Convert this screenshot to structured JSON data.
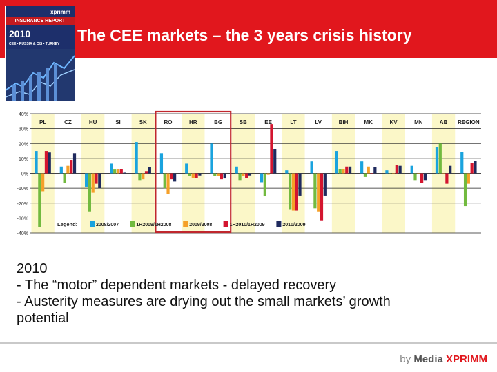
{
  "slide": {
    "title": "The CEE markets – the 3 years crisis history",
    "body_lines": [
      "2010",
      "- The “motor” dependent markets - delayed recovery",
      "- Austerity measures are drying out the small markets’ growth",
      "potential"
    ],
    "footer": {
      "by": "by",
      "media": "Media",
      "xprimm": "XPRIMM"
    }
  },
  "cover": {
    "brand": "xprimm",
    "title": "INSURANCE REPORT",
    "year": "2010",
    "subtitle": "CEE • RUSSIA & CIS • TURKEY"
  },
  "colors": {
    "header_red": "#e1171d",
    "highlight_band": "#fbf7c8",
    "highlight_box": "#c0272d",
    "series": [
      "#1aa3de",
      "#72ba3f",
      "#f5a028",
      "#d3152f",
      "#1f2a5e"
    ]
  },
  "chart_data": {
    "type": "bar",
    "categories": [
      "PL",
      "CZ",
      "HU",
      "SI",
      "SK",
      "RO",
      "HR",
      "BG",
      "SB",
      "EE",
      "LT",
      "LV",
      "BiH",
      "MK",
      "KV",
      "MN",
      "AB",
      "REGION"
    ],
    "series": [
      {
        "name": "2008/2007",
        "values": [
          15,
          4.5,
          -9,
          6.5,
          21,
          13.5,
          6.5,
          20,
          4.5,
          -6,
          2,
          8,
          15,
          8,
          2,
          5,
          17.5,
          14.5
        ]
      },
      {
        "name": "1H2009/1H2008",
        "values": [
          -36,
          -6.5,
          -26,
          2.5,
          -5,
          -10,
          -2,
          -2,
          -5,
          -15.5,
          -24.5,
          -23.5,
          3,
          -2.5,
          0,
          -5,
          20,
          -22
        ]
      },
      {
        "name": "2009/2008",
        "values": [
          -12,
          5,
          -13,
          3,
          -4,
          -14,
          -3,
          -2,
          -2,
          -1,
          -25,
          -26,
          3,
          4.5,
          0,
          0,
          0,
          -7
        ]
      },
      {
        "name": "1H2010/1H2009",
        "values": [
          15,
          9,
          -7,
          3,
          1.5,
          -4,
          -3,
          -4,
          -3,
          33,
          -25,
          -32,
          4.5,
          0,
          5.5,
          -6.5,
          -7,
          7
        ]
      },
      {
        "name": "2010/2009",
        "values": [
          14,
          13.5,
          -10,
          0.5,
          4,
          -5.5,
          -1.5,
          -3.5,
          -1.5,
          16,
          -15,
          -15,
          4.5,
          4,
          5,
          -5,
          5,
          8.5
        ]
      }
    ],
    "y_ticks": [
      "40%",
      "30%",
      "20%",
      "10%",
      "0%",
      "-10%",
      "-20%",
      "-30%",
      "-40%"
    ],
    "ylim": [
      -40,
      40
    ],
    "highlighted_bands": [
      "PL",
      "HU",
      "SK",
      "HR",
      "SB",
      "LT",
      "BiH",
      "KV",
      "AB"
    ],
    "highlight_box": [
      "RO",
      "HR",
      "BG"
    ],
    "legend_title": "Legend:",
    "legend_position": "bottom-left",
    "grid": true
  }
}
